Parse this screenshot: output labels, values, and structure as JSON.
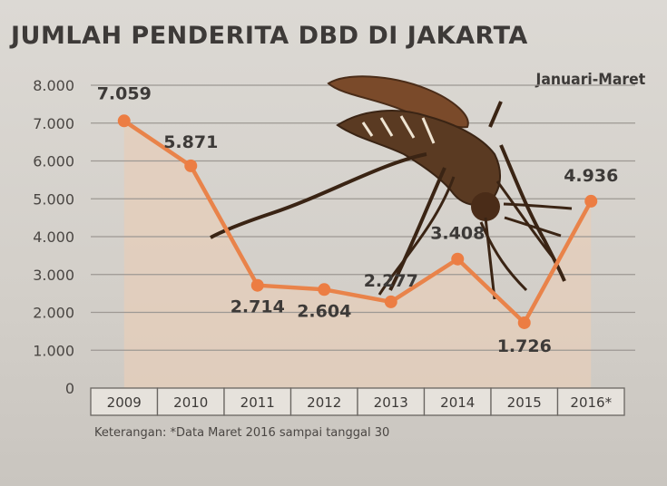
{
  "chart_data": {
    "type": "line",
    "title": "JUMLAH PENDERITA DBD DI JAKARTA",
    "subtitle": "Januari-Maret",
    "categories": [
      "2009",
      "2010",
      "2011",
      "2012",
      "2013",
      "2014",
      "2015",
      "2016*"
    ],
    "values": [
      7059,
      5871,
      2714,
      2604,
      2277,
      3408,
      1726,
      4936
    ],
    "data_labels": [
      "7.059",
      "5.871",
      "2.714",
      "2.604",
      "2.277",
      "3.408",
      "1.726",
      "4.936"
    ],
    "y_ticks": [
      0,
      1000,
      2000,
      3000,
      4000,
      5000,
      6000,
      7000,
      8000
    ],
    "y_tick_labels": [
      "0",
      "1.000",
      "2.000",
      "3.000",
      "4.000",
      "5.000",
      "6.000",
      "7.000",
      "8.000"
    ],
    "ylim": [
      0,
      8000
    ],
    "grid": true,
    "note": "Keterangan: *Data Maret 2016 sampai tanggal 30",
    "colors": {
      "line": "#e9834a",
      "marker": "#ec7d43",
      "area": "#e5cdb9",
      "grid": "#9d9893",
      "text": "#3d3a38",
      "mosquito_body": "#5a3a22",
      "mosquito_wing": "#7a4a2a"
    }
  }
}
